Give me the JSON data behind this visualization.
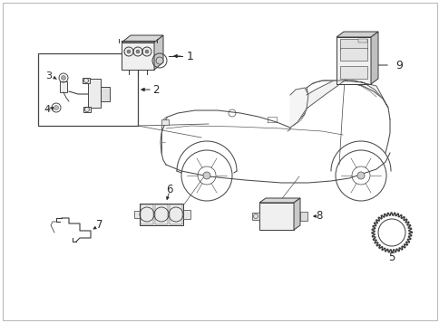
{
  "bg_color": "#ffffff",
  "line_color": "#2a2a2a",
  "fig_width": 4.85,
  "fig_height": 3.57,
  "dpi": 100,
  "part_color": "#3a3a3a",
  "light_color": "#888888",
  "border_color": "#bbbbbb"
}
